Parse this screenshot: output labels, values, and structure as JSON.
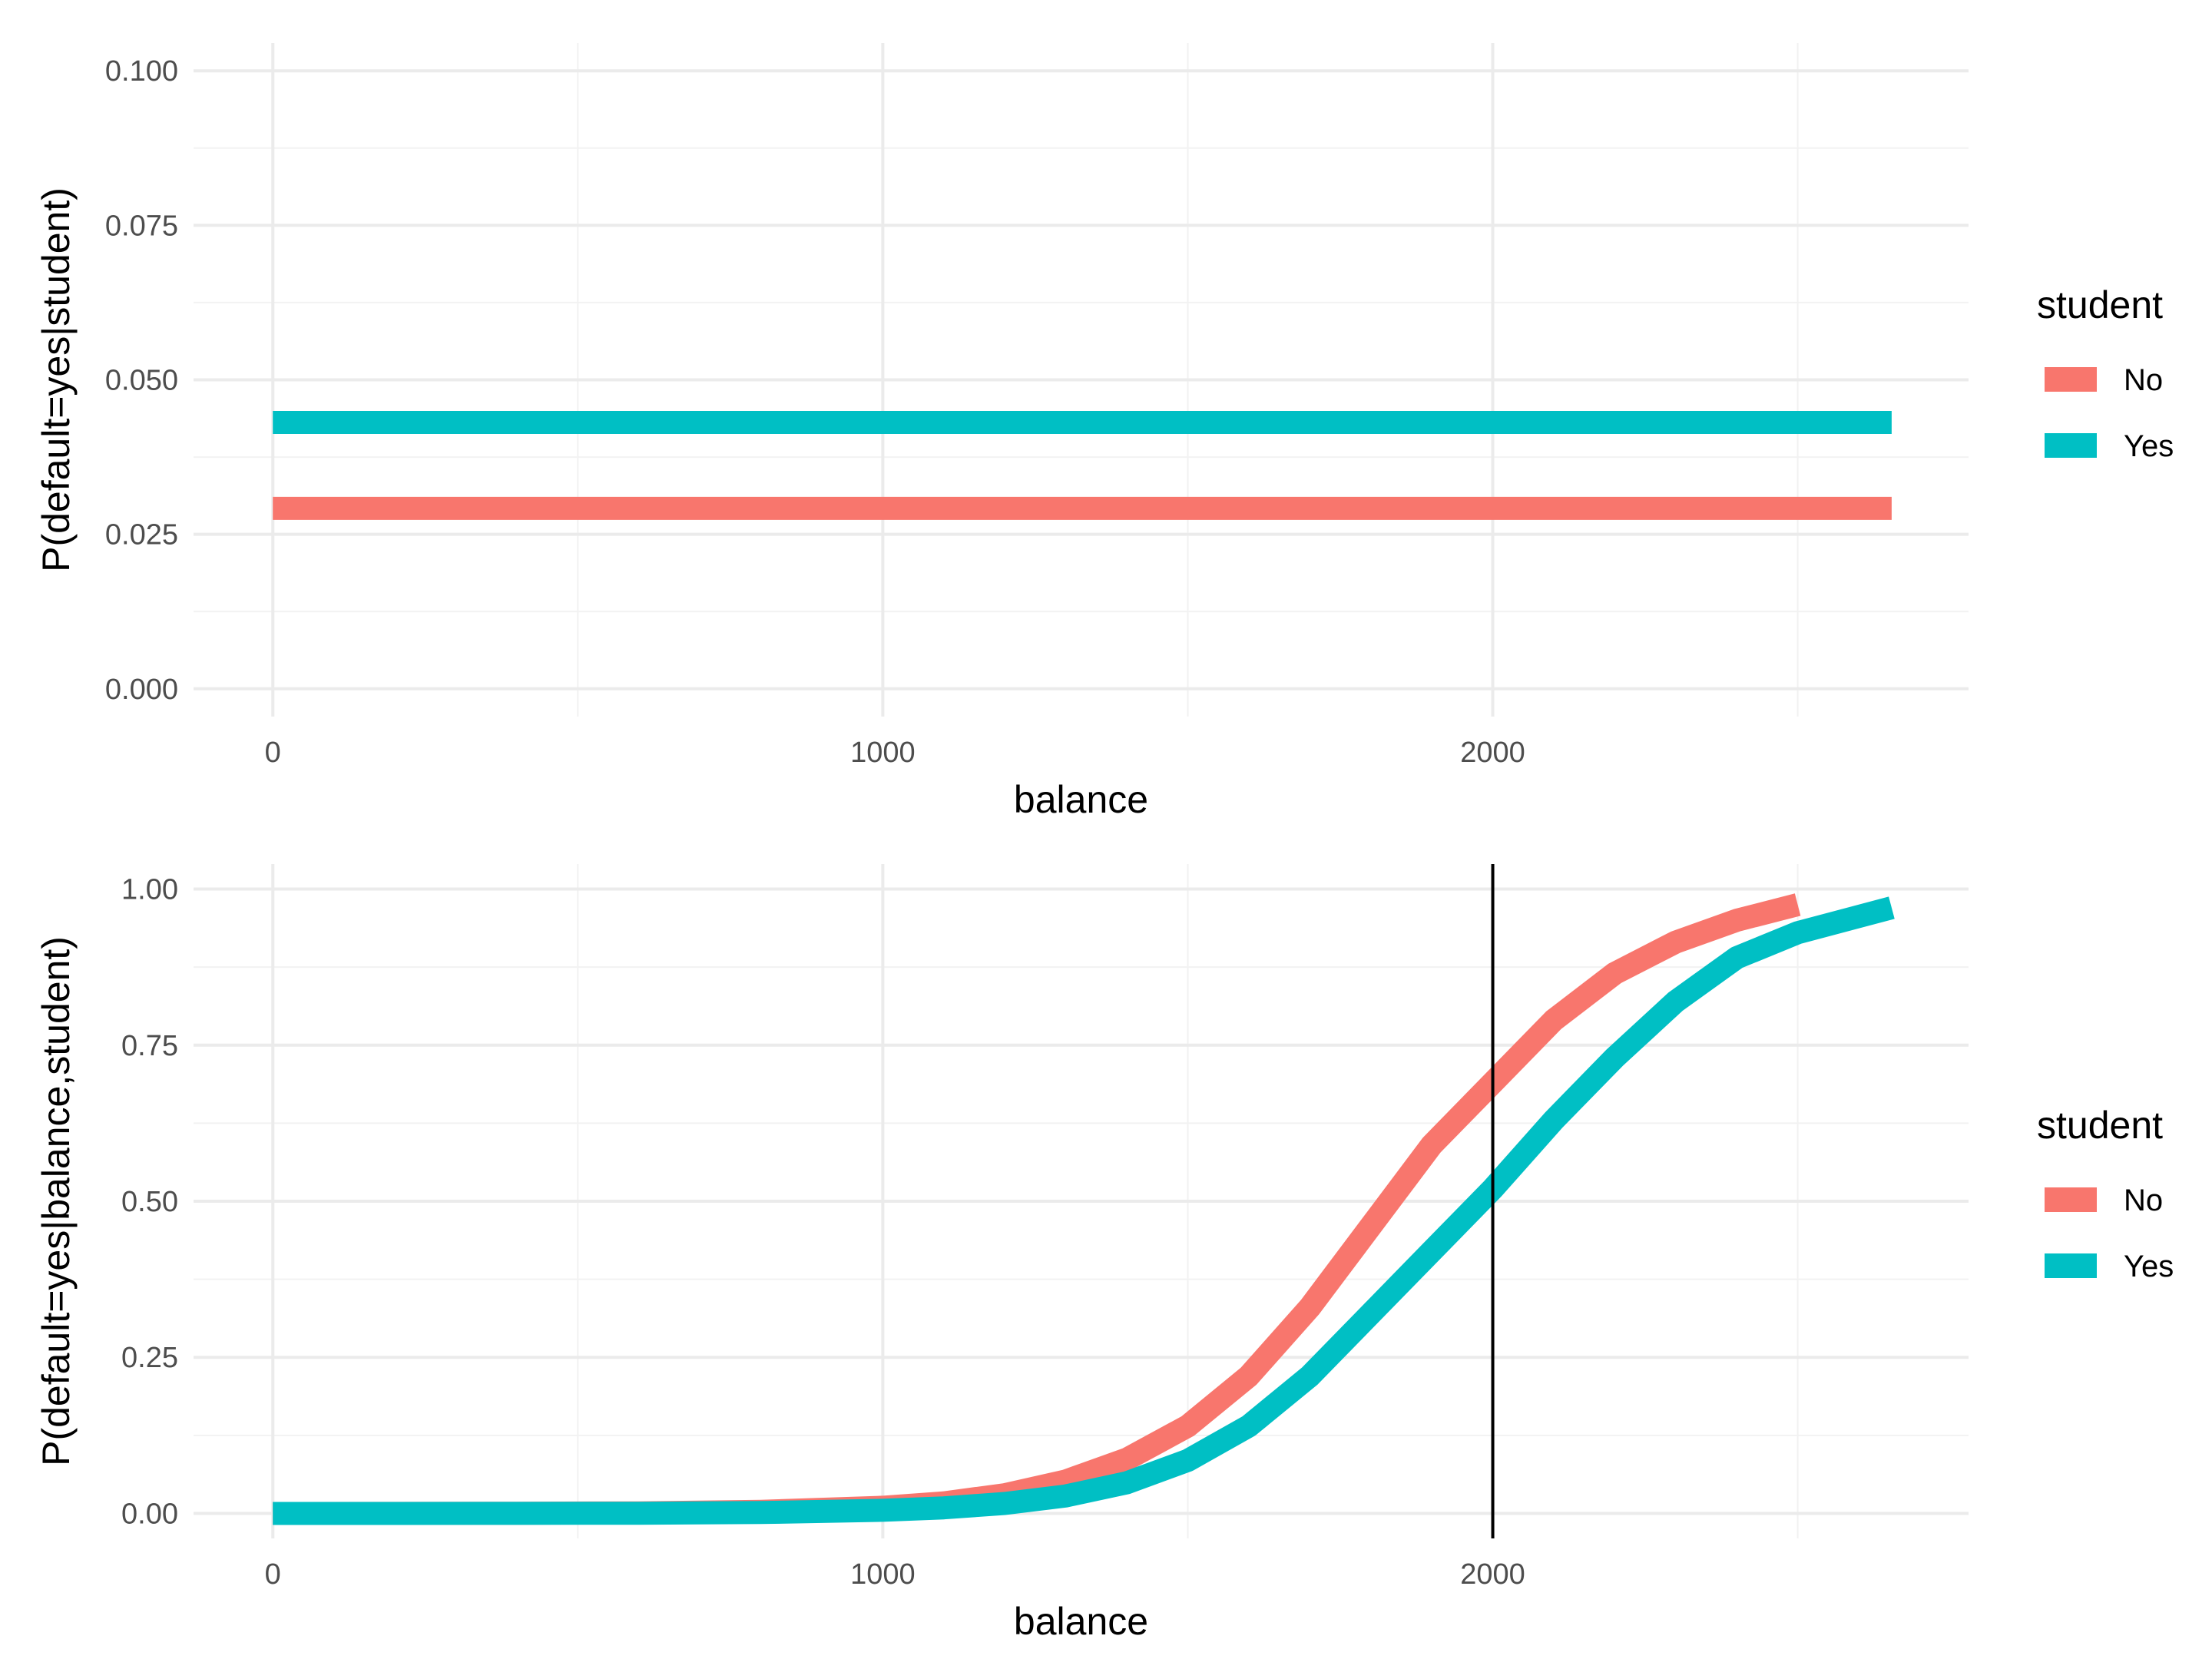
{
  "chart_data": [
    {
      "type": "line",
      "xlabel": "balance",
      "ylabel": "P(default=yes|student)",
      "xlim": [
        -130,
        2780
      ],
      "ylim": [
        -0.0045,
        0.1045
      ],
      "x_ticks": [
        0,
        1000,
        2000
      ],
      "x_tick_labels": [
        "0",
        "1000",
        "2000"
      ],
      "y_ticks": [
        0,
        0.025,
        0.05,
        0.075,
        0.1
      ],
      "y_tick_labels": [
        "0.000",
        "0.025",
        "0.050",
        "0.075",
        "0.100"
      ],
      "grid": true,
      "legend": {
        "title": "student",
        "position": "right",
        "entries": [
          {
            "label": "No",
            "color": "#F8766D"
          },
          {
            "label": "Yes",
            "color": "#00BFC4"
          }
        ]
      },
      "series": [
        {
          "name": "No",
          "color": "#F8766D",
          "x": [
            0,
            2654
          ],
          "y": [
            0.0292,
            0.0292
          ]
        },
        {
          "name": "Yes",
          "color": "#00BFC4",
          "x": [
            0,
            2654
          ],
          "y": [
            0.0431,
            0.0431
          ]
        }
      ]
    },
    {
      "type": "line",
      "xlabel": "balance",
      "ylabel": "P(default=yes|balance,student)",
      "xlim": [
        -130,
        2780
      ],
      "ylim": [
        -0.04,
        1.04
      ],
      "x_ticks": [
        0,
        1000,
        2000
      ],
      "x_tick_labels": [
        "0",
        "1000",
        "2000"
      ],
      "y_ticks": [
        0,
        0.25,
        0.5,
        0.75,
        1
      ],
      "y_tick_labels": [
        "0.00",
        "0.25",
        "0.50",
        "0.75",
        "1.00"
      ],
      "grid": true,
      "vline": 2000,
      "legend": {
        "title": "student",
        "position": "right",
        "entries": [
          {
            "label": "No",
            "color": "#F8766D"
          },
          {
            "label": "Yes",
            "color": "#00BFC4"
          }
        ]
      },
      "series": [
        {
          "name": "No",
          "color": "#F8766D",
          "x": [
            0,
            200,
            400,
            600,
            800,
            1000,
            1100,
            1200,
            1300,
            1400,
            1500,
            1600,
            1700,
            1800,
            1900,
            2000,
            2100,
            2200,
            2300,
            2400,
            2500
          ],
          "y": [
            0.0,
            0.0001,
            0.0003,
            0.001,
            0.0033,
            0.01,
            0.017,
            0.03,
            0.052,
            0.087,
            0.14,
            0.22,
            0.33,
            0.46,
            0.59,
            0.69,
            0.79,
            0.865,
            0.915,
            0.95,
            0.975
          ]
        },
        {
          "name": "Yes",
          "color": "#00BFC4",
          "x": [
            0,
            200,
            400,
            600,
            800,
            1000,
            1100,
            1200,
            1300,
            1400,
            1500,
            1600,
            1700,
            1800,
            1900,
            2000,
            2100,
            2200,
            2300,
            2400,
            2500,
            2654
          ],
          "y": [
            0.0,
            0.0,
            0.0001,
            0.0004,
            0.0015,
            0.005,
            0.009,
            0.016,
            0.028,
            0.049,
            0.085,
            0.14,
            0.22,
            0.32,
            0.42,
            0.52,
            0.63,
            0.73,
            0.82,
            0.89,
            0.93,
            0.97
          ]
        }
      ]
    }
  ]
}
